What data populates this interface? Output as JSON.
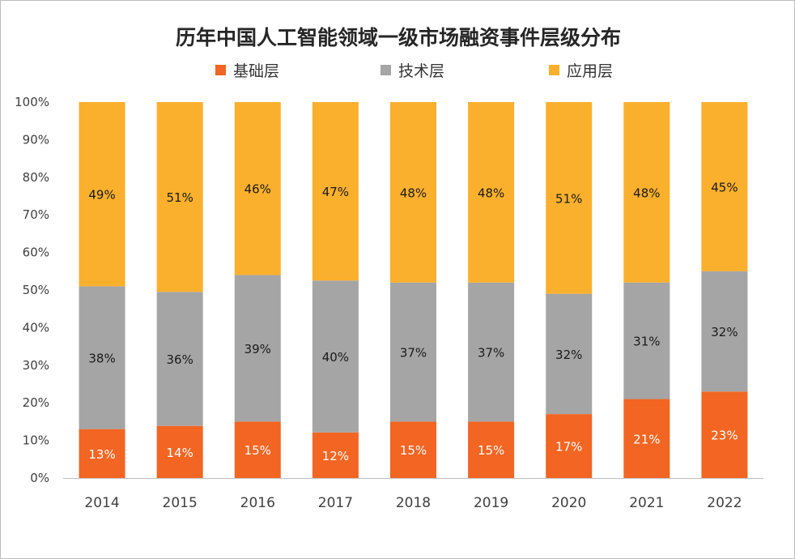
{
  "title": "历年中国人工智能领域一级市场融资事件层级分布",
  "chart_data": {
    "type": "bar",
    "stacked": true,
    "title": "历年中国人工智能领域一级市场融资事件层级分布",
    "xlabel": "",
    "ylabel": "",
    "categories": [
      "2014",
      "2015",
      "2016",
      "2017",
      "2018",
      "2019",
      "2020",
      "2021",
      "2022"
    ],
    "ylim": [
      0,
      100
    ],
    "y_ticks": [
      "0%",
      "10%",
      "20%",
      "30%",
      "40%",
      "50%",
      "60%",
      "70%",
      "80%",
      "90%",
      "100%"
    ],
    "legend_position": "top",
    "grid": false,
    "series": [
      {
        "name": "基础层",
        "color": "#f26522",
        "values": [
          13,
          14,
          15,
          12,
          15,
          15,
          17,
          21,
          23
        ],
        "labels": [
          "13%",
          "14%",
          "15%",
          "12%",
          "15%",
          "15%",
          "17%",
          "21%",
          "23%"
        ]
      },
      {
        "name": "技术层",
        "color": "#a5a5a5",
        "values": [
          38,
          36,
          39,
          40,
          37,
          37,
          32,
          31,
          32
        ],
        "labels": [
          "38%",
          "36%",
          "39%",
          "40%",
          "37%",
          "37%",
          "32%",
          "31%",
          "32%"
        ]
      },
      {
        "name": "应用层",
        "color": "#fbb02d",
        "values": [
          49,
          51,
          46,
          47,
          48,
          48,
          51,
          48,
          45
        ],
        "labels": [
          "49%",
          "51%",
          "46%",
          "47%",
          "48%",
          "48%",
          "51%",
          "48%",
          "45%"
        ]
      }
    ]
  }
}
